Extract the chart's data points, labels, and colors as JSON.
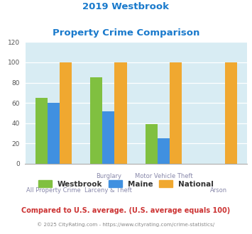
{
  "title_line1": "2019 Westbrook",
  "title_line2": "Property Crime Comparison",
  "cat_labels_top": [
    "",
    "Burglary",
    "Motor Vehicle Theft",
    ""
  ],
  "cat_labels_bot": [
    "All Property Crime",
    "Larceny & Theft",
    "",
    "Arson"
  ],
  "westbrook": [
    65,
    85,
    39,
    0
  ],
  "maine": [
    60,
    52,
    25,
    0
  ],
  "national": [
    100,
    100,
    100,
    100
  ],
  "westbrook_color": "#80c040",
  "maine_color": "#4090e0",
  "national_color": "#f0a830",
  "ylim": [
    0,
    120
  ],
  "yticks": [
    0,
    20,
    40,
    60,
    80,
    100,
    120
  ],
  "background_color": "#d8ecf3",
  "title_color": "#1a7acc",
  "label_color": "#8888aa",
  "subtitle": "Compared to U.S. average. (U.S. average equals 100)",
  "subtitle_color": "#cc3333",
  "footer": "© 2025 CityRating.com - https://www.cityrating.com/crime-statistics/",
  "footer_color": "#888888",
  "footer_link_color": "#4488cc",
  "legend_labels": [
    "Westbrook",
    "Maine",
    "National"
  ],
  "bar_width": 0.22,
  "group_positions": [
    0,
    1,
    2,
    3
  ]
}
